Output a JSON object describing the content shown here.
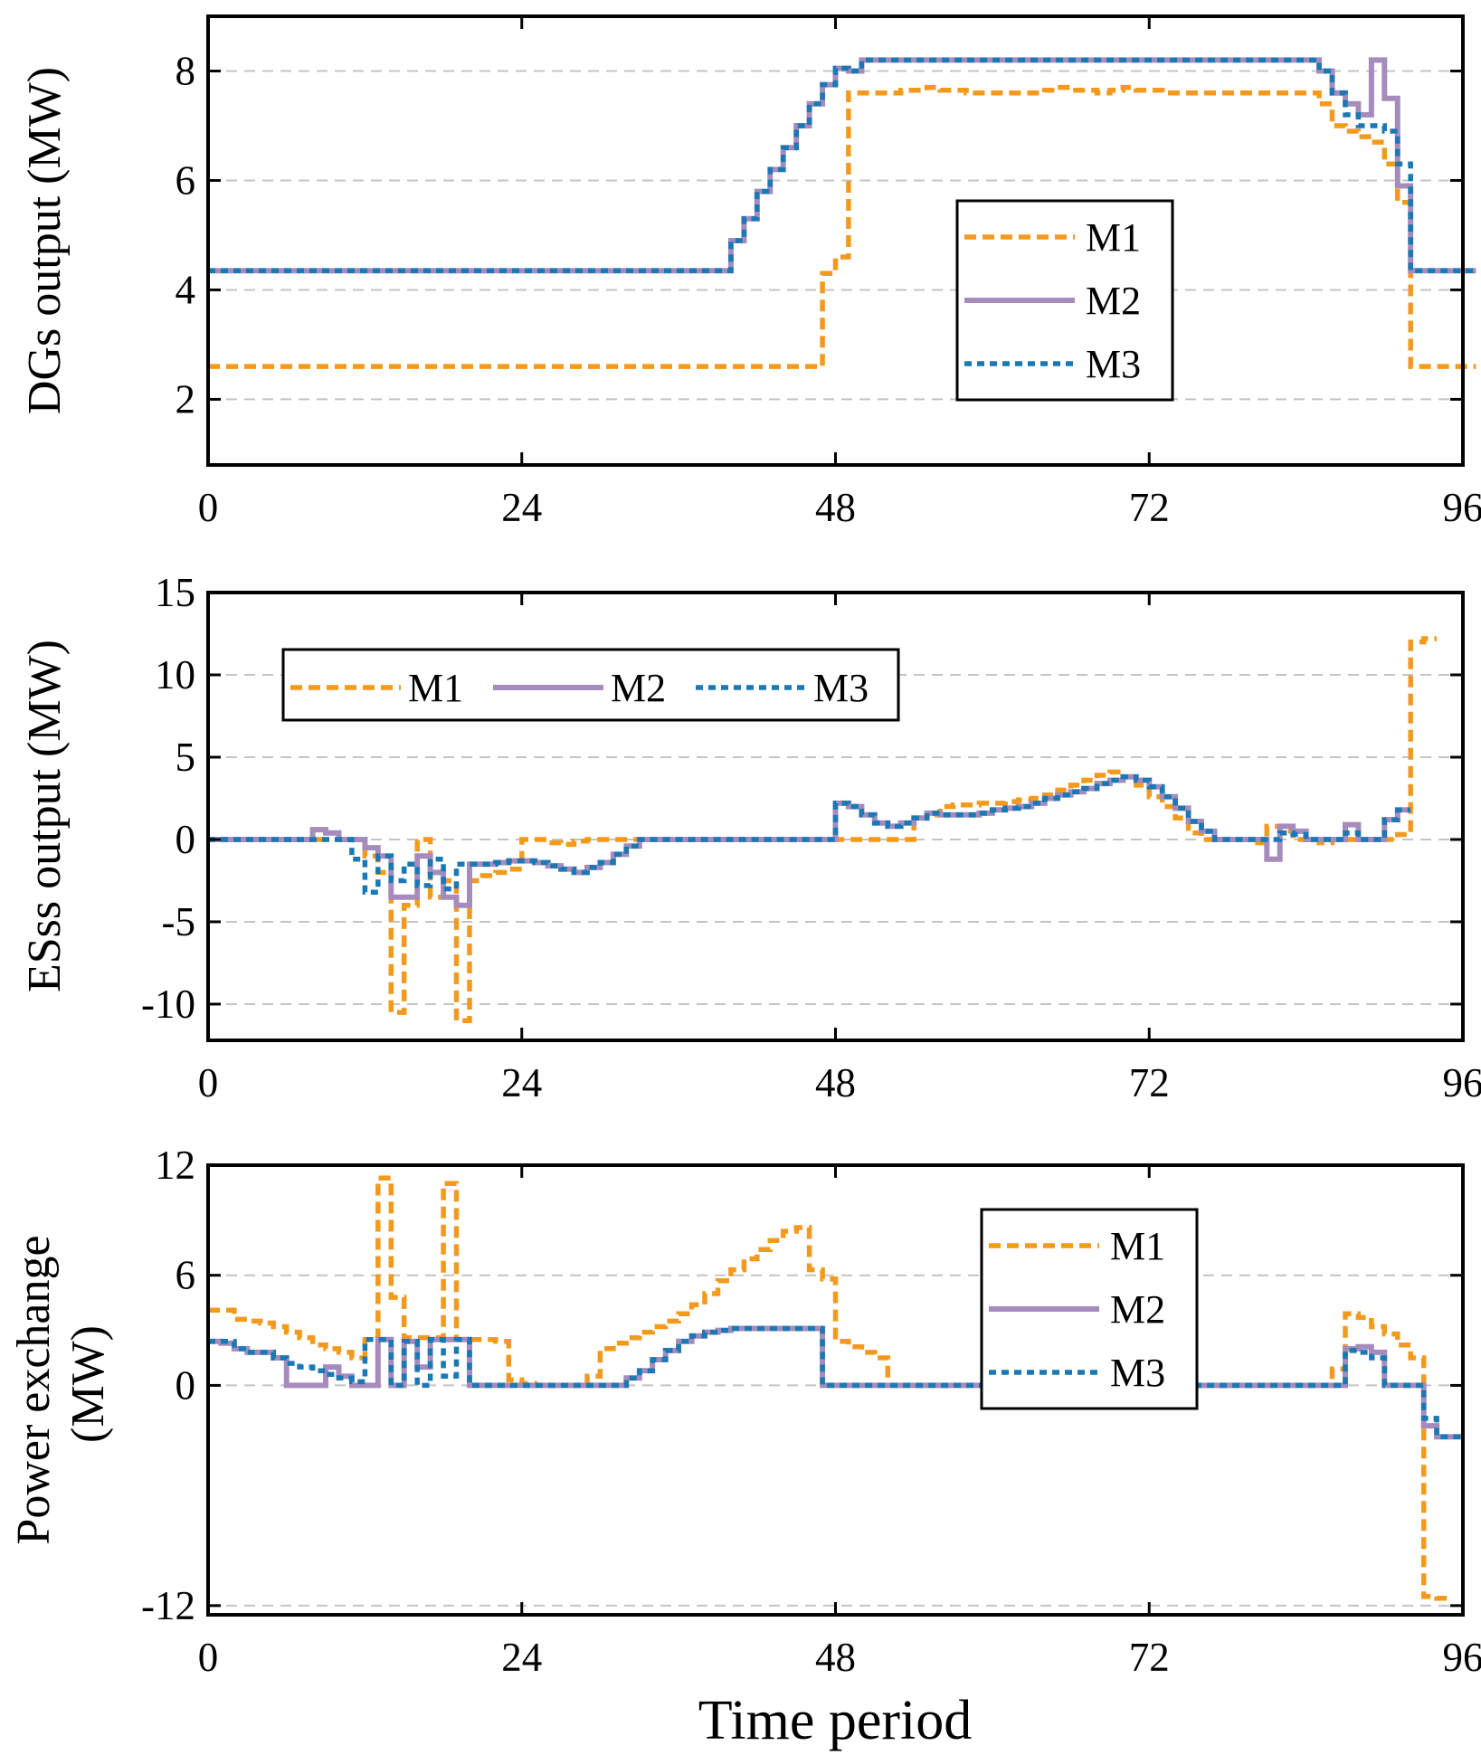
{
  "colors": {
    "M1": "#f39a1e",
    "M2": "#a68cbd",
    "M3": "#1a78b4"
  },
  "xlabel": "Time period",
  "chart_data": [
    {
      "type": "line",
      "ylabel": "DGs output (MW)",
      "xlim": [
        0,
        96
      ],
      "ylim": [
        0.8,
        9
      ],
      "xticks": [
        0,
        24,
        48,
        72,
        96
      ],
      "yticks": [
        2,
        4,
        6,
        8
      ],
      "legend": [
        "M1",
        "M2",
        "M3"
      ],
      "series": [
        {
          "name": "M1",
          "style": "dashed",
          "values": [
            2.6,
            2.6,
            2.6,
            2.6,
            2.6,
            2.6,
            2.6,
            2.6,
            2.6,
            2.6,
            2.6,
            2.6,
            2.6,
            2.6,
            2.6,
            2.6,
            2.6,
            2.6,
            2.6,
            2.6,
            2.6,
            2.6,
            2.6,
            2.6,
            2.6,
            2.6,
            2.6,
            2.6,
            2.6,
            2.6,
            2.6,
            2.6,
            2.6,
            2.6,
            2.6,
            2.6,
            2.6,
            2.6,
            2.6,
            2.6,
            2.6,
            2.6,
            2.6,
            2.6,
            2.6,
            2.6,
            2.6,
            4.3,
            4.6,
            7.6,
            7.6,
            7.6,
            7.6,
            7.65,
            7.65,
            7.7,
            7.65,
            7.65,
            7.6,
            7.6,
            7.6,
            7.6,
            7.6,
            7.6,
            7.65,
            7.7,
            7.65,
            7.65,
            7.6,
            7.65,
            7.7,
            7.65,
            7.65,
            7.6,
            7.6,
            7.6,
            7.6,
            7.6,
            7.6,
            7.6,
            7.6,
            7.6,
            7.6,
            7.6,
            7.6,
            7.4,
            7.0,
            6.9,
            6.8,
            6.7,
            6.3,
            5.6,
            2.6,
            2.6,
            2.6,
            2.6,
            2.6
          ]
        },
        {
          "name": "M2",
          "style": "solid",
          "values": [
            4.35,
            4.35,
            4.35,
            4.35,
            4.35,
            4.35,
            4.35,
            4.35,
            4.35,
            4.35,
            4.35,
            4.35,
            4.35,
            4.35,
            4.35,
            4.35,
            4.35,
            4.35,
            4.35,
            4.35,
            4.35,
            4.35,
            4.35,
            4.35,
            4.35,
            4.35,
            4.35,
            4.35,
            4.35,
            4.35,
            4.35,
            4.35,
            4.35,
            4.35,
            4.35,
            4.35,
            4.35,
            4.35,
            4.35,
            4.35,
            4.9,
            5.3,
            5.8,
            6.2,
            6.6,
            7.0,
            7.4,
            7.75,
            8.05,
            8.0,
            8.2,
            8.2,
            8.2,
            8.2,
            8.2,
            8.2,
            8.2,
            8.2,
            8.2,
            8.2,
            8.2,
            8.2,
            8.2,
            8.2,
            8.2,
            8.2,
            8.2,
            8.2,
            8.2,
            8.2,
            8.2,
            8.2,
            8.2,
            8.2,
            8.2,
            8.2,
            8.2,
            8.2,
            8.2,
            8.2,
            8.2,
            8.2,
            8.2,
            8.2,
            8.2,
            8.0,
            7.6,
            7.4,
            7.2,
            8.2,
            7.5,
            5.9,
            4.35,
            4.35,
            4.35,
            4.35,
            4.35
          ]
        },
        {
          "name": "M3",
          "style": "dotted",
          "values": [
            4.35,
            4.35,
            4.35,
            4.35,
            4.35,
            4.35,
            4.35,
            4.35,
            4.35,
            4.35,
            4.35,
            4.35,
            4.35,
            4.35,
            4.35,
            4.35,
            4.35,
            4.35,
            4.35,
            4.35,
            4.35,
            4.35,
            4.35,
            4.35,
            4.35,
            4.35,
            4.35,
            4.35,
            4.35,
            4.35,
            4.35,
            4.35,
            4.35,
            4.35,
            4.35,
            4.35,
            4.35,
            4.35,
            4.35,
            4.35,
            4.9,
            5.3,
            5.8,
            6.2,
            6.6,
            7.0,
            7.4,
            7.75,
            8.05,
            8.0,
            8.2,
            8.2,
            8.2,
            8.2,
            8.2,
            8.2,
            8.2,
            8.2,
            8.2,
            8.2,
            8.2,
            8.2,
            8.2,
            8.2,
            8.2,
            8.2,
            8.2,
            8.2,
            8.2,
            8.2,
            8.2,
            8.2,
            8.2,
            8.2,
            8.2,
            8.2,
            8.2,
            8.2,
            8.2,
            8.2,
            8.2,
            8.2,
            8.2,
            8.2,
            8.2,
            8.0,
            7.6,
            7.2,
            7.0,
            7.0,
            6.9,
            6.3,
            4.35,
            4.35,
            4.35,
            4.35,
            4.35
          ]
        }
      ]
    },
    {
      "type": "line",
      "ylabel": "ESss output (MW)",
      "xlim": [
        0,
        96
      ],
      "ylim": [
        -12.2,
        15
      ],
      "xticks": [
        0,
        24,
        48,
        72,
        96
      ],
      "yticks": [
        -10,
        -5,
        0,
        5,
        10,
        15
      ],
      "legend": [
        "M1",
        "M2",
        "M3"
      ],
      "series": [
        {
          "name": "M1",
          "style": "dashed",
          "values": [
            0,
            0,
            0,
            0,
            0,
            0,
            0,
            0,
            0,
            0,
            0,
            0,
            -1,
            -2,
            -10.5,
            -4,
            0,
            -3.5,
            -2.5,
            -11,
            -2.5,
            -2.2,
            -2,
            -1.8,
            0,
            0,
            -0.2,
            -0.3,
            -0.1,
            0,
            0,
            0,
            0,
            0,
            0,
            0,
            0,
            0,
            0,
            0,
            0,
            0,
            0,
            0,
            0,
            0,
            0,
            0,
            0,
            0,
            0,
            0,
            0,
            0,
            1.3,
            1.5,
            2.0,
            2.1,
            2.1,
            2.2,
            2.2,
            2.3,
            2.4,
            2.5,
            2.7,
            3.0,
            3.3,
            3.6,
            3.9,
            4.1,
            3.8,
            3.3,
            2.6,
            2.0,
            1.3,
            0.4,
            0,
            0,
            0,
            0,
            -0.2,
            0.8,
            0.5,
            0,
            0,
            -0.2,
            0,
            0,
            0,
            0,
            0,
            0.3,
            12,
            12.2
          ]
        },
        {
          "name": "M2",
          "style": "solid",
          "values": [
            0,
            0,
            0,
            0,
            0,
            0,
            0,
            0,
            0.6,
            0.4,
            0,
            0,
            -0.5,
            -1,
            -3.5,
            -3.5,
            -1,
            -2,
            -3.5,
            -4,
            -1.5,
            -1.5,
            -1.4,
            -1.3,
            -1.3,
            -1.4,
            -1.6,
            -1.8,
            -2.0,
            -1.7,
            -1.4,
            -0.9,
            -0.4,
            0,
            0,
            0,
            0,
            0,
            0,
            0,
            0,
            0,
            0,
            0,
            0,
            0,
            0,
            0,
            2.2,
            2.0,
            1.5,
            1.0,
            0.8,
            1.0,
            1.3,
            1.6,
            1.5,
            1.5,
            1.5,
            1.6,
            1.8,
            1.9,
            2.0,
            2.2,
            2.5,
            2.7,
            2.9,
            3.1,
            3.4,
            3.6,
            3.8,
            3.6,
            3.2,
            2.6,
            1.9,
            1.1,
            0.5,
            0,
            0,
            0,
            0,
            -1.2,
            0.8,
            0.5,
            0,
            0,
            0,
            0.9,
            0,
            0,
            1.2,
            1.8
          ]
        },
        {
          "name": "M3",
          "style": "dotted",
          "values": [
            0,
            0,
            0,
            0,
            0,
            0,
            0,
            0,
            0,
            0,
            0,
            -1.2,
            -3.2,
            -1,
            -2.5,
            -1.5,
            -2.8,
            -1.2,
            -3.0,
            -1.5,
            -1.5,
            -1.5,
            -1.4,
            -1.3,
            -1.3,
            -1.4,
            -1.6,
            -1.8,
            -2.0,
            -1.7,
            -1.4,
            -0.9,
            -0.4,
            0,
            0,
            0,
            0,
            0,
            0,
            0,
            0,
            0,
            0,
            0,
            0,
            0,
            0,
            0,
            2.2,
            2.0,
            1.5,
            1.0,
            0.8,
            1.0,
            1.3,
            1.6,
            1.5,
            1.5,
            1.5,
            1.6,
            1.8,
            1.9,
            2.0,
            2.2,
            2.5,
            2.7,
            2.9,
            3.1,
            3.4,
            3.6,
            3.8,
            3.6,
            3.2,
            2.6,
            1.9,
            1.1,
            0.5,
            0,
            0,
            0,
            0,
            0,
            0.4,
            0.3,
            0,
            0,
            0,
            0.4,
            0,
            0,
            1.2,
            1.8
          ]
        }
      ]
    },
    {
      "type": "line",
      "ylabel": "Power exchange (MW)",
      "xlim": [
        0,
        96
      ],
      "ylim": [
        -12.5,
        12
      ],
      "xticks": [
        0,
        24,
        48,
        72,
        96
      ],
      "yticks": [
        -12,
        0,
        6,
        12
      ],
      "legend": [
        "M1",
        "M2",
        "M3"
      ],
      "series": [
        {
          "name": "M1",
          "style": "dashed",
          "values": [
            4.1,
            4.1,
            3.6,
            3.5,
            3.4,
            3.2,
            2.9,
            2.6,
            2.2,
            2.0,
            1.8,
            1.5,
            2.5,
            11.3,
            4.8,
            2.6,
            2.6,
            2.6,
            11.0,
            2.5,
            2.5,
            2.5,
            2.4,
            0.3,
            0.1,
            0,
            0,
            0,
            0,
            0.5,
            2.0,
            2.3,
            2.6,
            2.9,
            3.2,
            3.5,
            3.9,
            4.4,
            5.0,
            5.7,
            6.3,
            6.9,
            7.4,
            7.9,
            8.4,
            8.6,
            6.3,
            5.8,
            2.4,
            2.1,
            1.8,
            1.5,
            0,
            0,
            0,
            0,
            0,
            0,
            0,
            0,
            0,
            0,
            0,
            0,
            0,
            0,
            0,
            0,
            0,
            0,
            0,
            0,
            0,
            0,
            0,
            0,
            0,
            0,
            0,
            0,
            0,
            0,
            0,
            0,
            0,
            0,
            0.9,
            3.9,
            3.7,
            3.2,
            2.8,
            2.2,
            1.5,
            -11.5,
            -11.6
          ]
        },
        {
          "name": "M2",
          "style": "solid",
          "values": [
            2.4,
            2.3,
            2.0,
            1.8,
            1.8,
            1.5,
            0,
            0,
            0,
            1.0,
            0.5,
            0,
            0,
            2.5,
            0,
            2.4,
            1.0,
            2.5,
            2.5,
            2.5,
            0,
            0,
            0,
            0,
            0,
            0,
            0,
            0,
            0,
            0,
            0,
            0,
            0.4,
            0.8,
            1.4,
            1.9,
            2.4,
            2.7,
            2.9,
            3.0,
            3.1,
            3.1,
            3.1,
            3.1,
            3.1,
            3.1,
            3.1,
            0,
            0,
            0,
            0,
            0,
            0,
            0,
            0,
            0,
            0,
            0,
            0,
            0,
            0,
            0,
            0,
            0,
            0,
            0,
            0,
            0,
            0,
            0,
            0,
            0,
            0,
            0,
            0,
            0,
            0,
            0,
            0,
            0,
            0,
            0,
            0,
            0,
            0,
            0,
            0,
            2.0,
            2.1,
            1.8,
            0,
            0,
            0,
            -2.2,
            -2.8,
            -2.8
          ]
        },
        {
          "name": "M3",
          "style": "dotted",
          "values": [
            2.4,
            2.4,
            2.0,
            1.8,
            1.8,
            1.5,
            1.2,
            1.0,
            0.8,
            0.6,
            0.4,
            0.2,
            2.5,
            2.5,
            0,
            2.4,
            0,
            2.5,
            0.5,
            2.5,
            0,
            0,
            0,
            0,
            0,
            0,
            0,
            0,
            0,
            0,
            0,
            0,
            0.4,
            0.8,
            1.4,
            1.9,
            2.4,
            2.7,
            2.9,
            3.0,
            3.1,
            3.1,
            3.1,
            3.1,
            3.1,
            3.1,
            3.1,
            0,
            0,
            0,
            0,
            0,
            0,
            0,
            0,
            0,
            0,
            0,
            0,
            0,
            0,
            0,
            0,
            0,
            0,
            0,
            0,
            0,
            0,
            0,
            0,
            0,
            0,
            0,
            0,
            0,
            0,
            0,
            0,
            0,
            0,
            0,
            0,
            0,
            0,
            0,
            0,
            1.9,
            1.8,
            1.5,
            0,
            0,
            0,
            -1.8,
            -2.8,
            -2.8
          ]
        }
      ]
    }
  ]
}
